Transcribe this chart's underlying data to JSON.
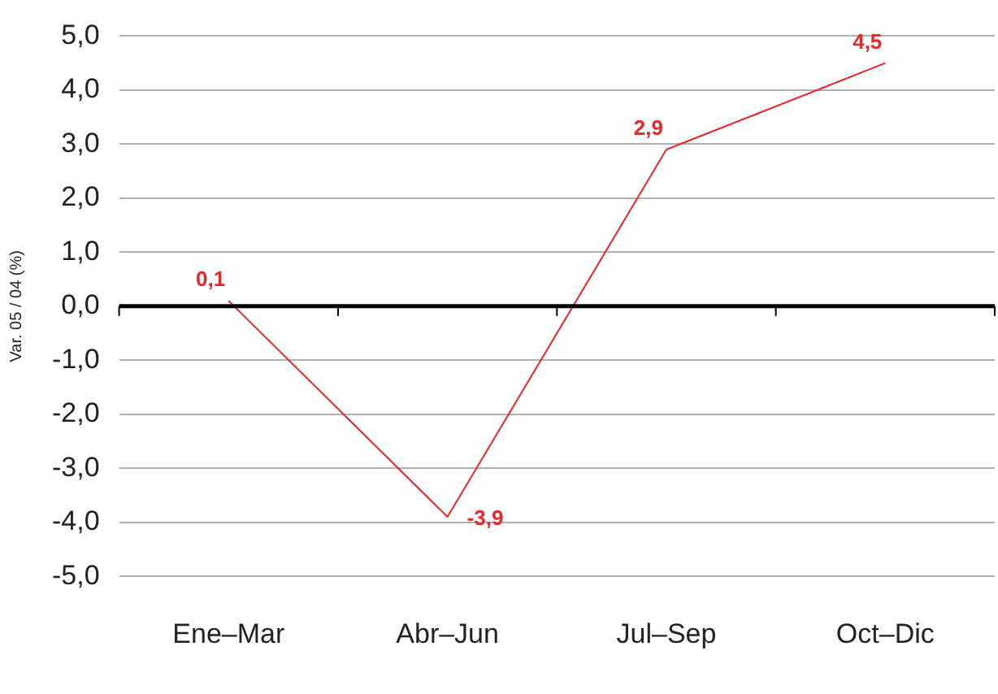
{
  "chart_data": {
    "type": "line",
    "ylabel": "Var. 05 / 04 (%)",
    "categories": [
      "Ene–Mar",
      "Abr–Jun",
      "Jul–Sep",
      "Oct–Dic"
    ],
    "series": [
      {
        "color": "#e8262b",
        "values": [
          0.1,
          -3.9,
          2.9,
          4.5
        ],
        "value_labels": [
          "0,1",
          "-3,9",
          "2,9",
          "4,5"
        ]
      }
    ],
    "ylim": [
      -5,
      5
    ],
    "yticks": [
      {
        "value": -5,
        "label": "-5,0"
      },
      {
        "value": -4,
        "label": "-4,0"
      },
      {
        "value": -3,
        "label": "-3,0"
      },
      {
        "value": -2,
        "label": "-2,0"
      },
      {
        "value": -1,
        "label": "-1,0"
      },
      {
        "value": 0,
        "label": "0,0"
      },
      {
        "value": 1,
        "label": "1,0"
      },
      {
        "value": 2,
        "label": "2,0"
      },
      {
        "value": 3,
        "label": "3,0"
      },
      {
        "value": 4,
        "label": "4,0"
      },
      {
        "value": 5,
        "label": "5,0"
      }
    ],
    "ref_lines": [
      {
        "axis": "y",
        "value": 0,
        "color": "#000000"
      }
    ],
    "grid": "y",
    "marker": "none",
    "line_style": "solid",
    "legend": false
  }
}
